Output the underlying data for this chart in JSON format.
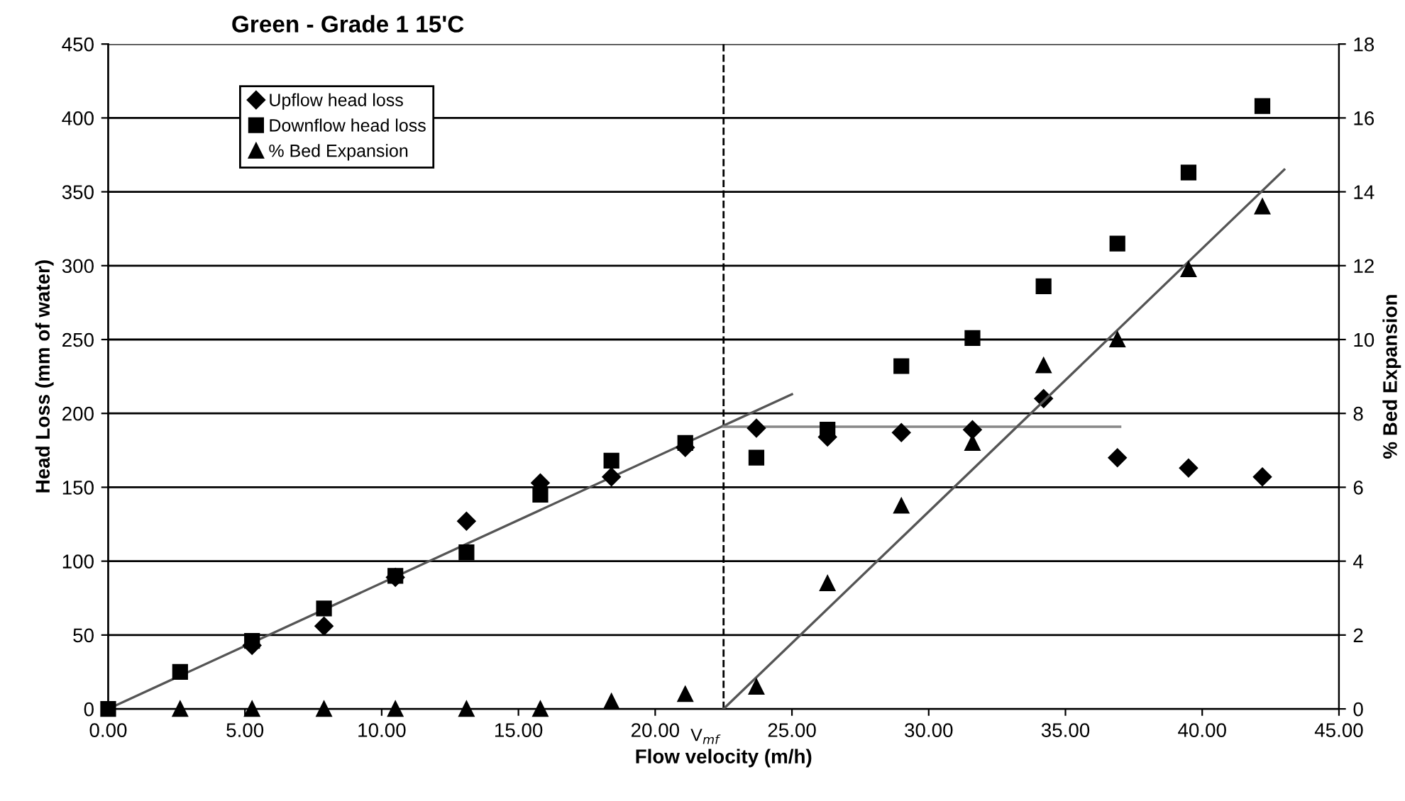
{
  "chart_data": {
    "type": "scatter",
    "title": "Green - Grade 1 15'C",
    "xlabel": "Flow velocity (m/h)",
    "ylabel": "Head Loss (mm of water)",
    "y2label": "% Bed Expansion",
    "xlim": [
      0,
      45
    ],
    "xticks": [
      {
        "value": 0,
        "label": "0.00"
      },
      {
        "value": 5,
        "label": "5.00"
      },
      {
        "value": 10,
        "label": "10.00"
      },
      {
        "value": 15,
        "label": "15.00"
      },
      {
        "value": 20,
        "label": "20.00"
      },
      {
        "value": 25,
        "label": "25.00"
      },
      {
        "value": 30,
        "label": "30.00"
      },
      {
        "value": 35,
        "label": "35.00"
      },
      {
        "value": 40,
        "label": "40.00"
      },
      {
        "value": 45,
        "label": "45.00"
      }
    ],
    "ylim": [
      0,
      450
    ],
    "yticks": [
      0,
      50,
      100,
      150,
      200,
      250,
      300,
      350,
      400,
      450
    ],
    "y2lim": [
      0,
      18
    ],
    "y2ticks": [
      0,
      2,
      4,
      6,
      8,
      10,
      12,
      14,
      16,
      18
    ],
    "grid": "y",
    "legend": "top left",
    "series": [
      {
        "name": "Upflow head loss",
        "color": "#000000",
        "marker": "diamond",
        "x": [
          5.26,
          7.89,
          10.5,
          13.1,
          15.8,
          18.4,
          21.1,
          23.7,
          26.3,
          29.0,
          31.6,
          34.2,
          36.9,
          39.5,
          42.2
        ],
        "values": [
          43,
          56,
          89,
          127,
          153,
          157,
          177,
          190,
          184,
          187,
          189,
          210,
          170,
          163,
          157
        ]
      },
      {
        "name": "Downflow head loss",
        "color": "#000000",
        "marker": "square",
        "x": [
          0,
          2.63,
          5.26,
          7.89,
          10.5,
          13.1,
          15.8,
          18.4,
          21.1,
          23.7,
          26.3,
          29.0,
          31.6,
          34.2,
          36.9,
          39.5,
          42.2
        ],
        "values": [
          0,
          25,
          46,
          68,
          90,
          106,
          145,
          168,
          180,
          170,
          189,
          232,
          251,
          286,
          315,
          363,
          408
        ]
      },
      {
        "name": "% Bed Expansion",
        "color": "#000000",
        "marker": "triangle",
        "axis": "y2",
        "x": [
          2.63,
          5.26,
          7.89,
          10.5,
          13.1,
          15.8,
          18.4,
          21.1,
          23.7,
          26.3,
          29.0,
          31.6,
          34.2,
          36.9,
          39.5,
          42.2
        ],
        "values": [
          0,
          0,
          0,
          0,
          0,
          0,
          0.2,
          0.4,
          0.6,
          3.4,
          5.5,
          7.2,
          9.3,
          10.0,
          11.9,
          13.6
        ]
      },
      {
        "type": "line",
        "color": "#555555",
        "marker": "none",
        "x": [
          0,
          25
        ],
        "values": [
          0,
          213
        ]
      },
      {
        "type": "line",
        "color": "#888888",
        "marker": "none",
        "x": [
          22.5,
          37
        ],
        "values": [
          191,
          191
        ]
      },
      {
        "type": "line",
        "color": "#555555",
        "marker": "none",
        "axis": "y2",
        "x": [
          22.5,
          43
        ],
        "values": [
          0,
          14.6
        ]
      }
    ],
    "ref_lines": [
      {
        "axis": "x",
        "value": 22.5,
        "label": "V$_{mf}$",
        "color": "#000000",
        "line_style": "dashed"
      }
    ]
  }
}
